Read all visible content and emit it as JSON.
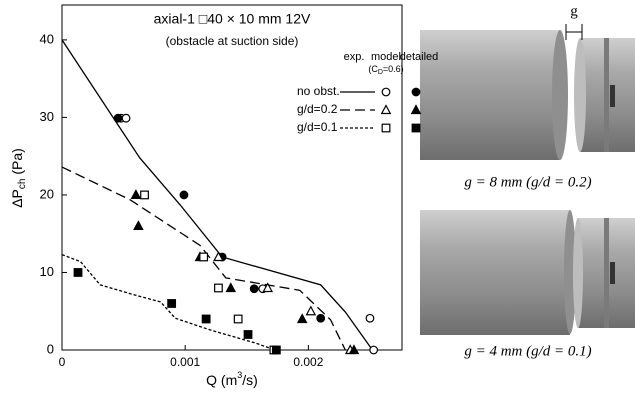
{
  "chart_data": {
    "type": "line",
    "title": "axial-1 □40 × 10 mm  12V",
    "subtitle": "(obstacle at suction side)",
    "y_label": {
      "main": "ΔP",
      "sub": "ch",
      "unit": " (Pa)"
    },
    "x_label": {
      "main": "Q  (m",
      "sup": "3",
      "unit": "/s)"
    },
    "xlim": [
      0,
      0.00276
    ],
    "ylim": [
      0,
      44.5
    ],
    "xticks": [
      0,
      0.001,
      0.002
    ],
    "yticks": [
      0,
      10,
      20,
      30,
      40
    ],
    "legend_columns": {
      "exp": "exp.",
      "model": "model",
      "detailed": "detailed"
    },
    "model_note": {
      "prefix": "(C",
      "sub": "D",
      "suffix": "=0.6)"
    },
    "groups": [
      {
        "name": "no obst.",
        "marker": "circle",
        "dash": "solid",
        "color": "#000000",
        "model": {
          "x": [
            0,
            0.00063,
            0.00096,
            0.0013,
            0.0021,
            0.0023,
            0.00252
          ],
          "y": [
            40,
            24.8,
            18.7,
            12,
            8.4,
            4.9,
            0
          ]
        },
        "exp": {
          "x": [
            0.00048,
            0.00052,
            0.00163,
            0.0025,
            0.00253
          ],
          "y": [
            29.9,
            29.9,
            7.9,
            4.1,
            0
          ]
        },
        "detailed": {
          "x": [
            0.000455,
            0.00099,
            0.0013,
            0.00156,
            0.0021
          ],
          "y": [
            29.9,
            20,
            12,
            7.9,
            4.1
          ]
        }
      },
      {
        "name": "g/d=0.2",
        "marker": "triangle",
        "dash": "dashed",
        "color": "#000000",
        "model": {
          "x": [
            0,
            0.00055,
            0.00112,
            0.00133,
            0.00193,
            0.00218,
            0.0023
          ],
          "y": [
            23.6,
            19.4,
            13.5,
            9.3,
            7.7,
            3.9,
            0
          ]
        },
        "exp": {
          "x": [
            0.00127,
            0.00167,
            0.00202,
            0.00234
          ],
          "y": [
            12,
            8,
            5,
            0
          ]
        },
        "detailed": {
          "x": [
            0.0006,
            0.00062,
            0.00112,
            0.00137,
            0.00195,
            0.00237
          ],
          "y": [
            20,
            16,
            12,
            8,
            4,
            0
          ]
        }
      },
      {
        "name": "g/d=0.1",
        "marker": "square",
        "dash": "dotted",
        "color": "#000000",
        "model": {
          "x": [
            0,
            0.00015,
            0.00031,
            0.00059,
            0.0008,
            0.00092,
            0.0012,
            0.00157,
            0.00173
          ],
          "y": [
            12.3,
            11.4,
            8.4,
            7.1,
            6.2,
            4.1,
            2.6,
            0.9,
            0
          ]
        },
        "exp": {
          "x": [
            0.00067,
            0.00115,
            0.00127,
            0.00143,
            0.00172
          ],
          "y": [
            20,
            12,
            8,
            4,
            0
          ]
        },
        "detailed": {
          "x": [
            0.00013,
            0.00089,
            0.00117,
            0.00151,
            0.00174
          ],
          "y": [
            10,
            6,
            4,
            2,
            0
          ]
        }
      }
    ]
  },
  "images": {
    "gap_label": "g",
    "captions": [
      "g = 8 mm (g/d = 0.2)",
      "g = 4 mm (g/d = 0.1)"
    ]
  }
}
